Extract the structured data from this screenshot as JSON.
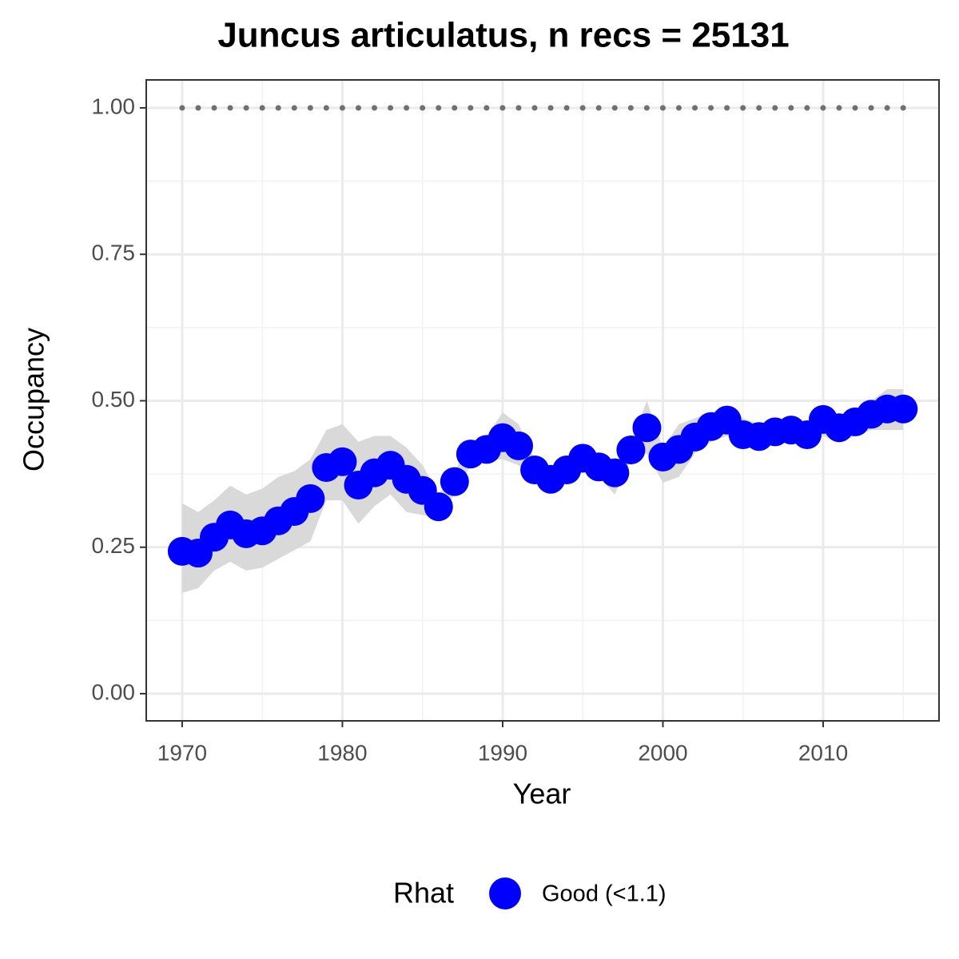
{
  "chart_data": {
    "type": "scatter",
    "title": "Juncus articulatus, n recs = 25131",
    "xlabel": "Year",
    "ylabel": "Occupancy",
    "x": [
      1970,
      1971,
      1972,
      1973,
      1974,
      1975,
      1976,
      1977,
      1978,
      1979,
      1980,
      1981,
      1982,
      1983,
      1984,
      1985,
      1986,
      1987,
      1988,
      1989,
      1990,
      1991,
      1992,
      1993,
      1994,
      1995,
      1996,
      1997,
      1998,
      1999,
      2000,
      2001,
      2002,
      2003,
      2004,
      2005,
      2006,
      2007,
      2008,
      2009,
      2010,
      2011,
      2012,
      2013,
      2014,
      2015
    ],
    "series": [
      {
        "name": "Good (<1.1)",
        "color": "#0000ff",
        "values": [
          0.243,
          0.24,
          0.267,
          0.288,
          0.273,
          0.278,
          0.295,
          0.311,
          0.333,
          0.386,
          0.396,
          0.356,
          0.377,
          0.39,
          0.366,
          0.347,
          0.319,
          0.362,
          0.409,
          0.417,
          0.437,
          0.423,
          0.382,
          0.366,
          0.382,
          0.402,
          0.387,
          0.377,
          0.416,
          0.454,
          0.404,
          0.417,
          0.438,
          0.456,
          0.467,
          0.442,
          0.439,
          0.447,
          0.45,
          0.442,
          0.468,
          0.454,
          0.464,
          0.477,
          0.486,
          0.486
        ],
        "upper": [
          0.325,
          0.31,
          0.33,
          0.355,
          0.34,
          0.35,
          0.37,
          0.38,
          0.4,
          0.45,
          0.46,
          0.43,
          0.44,
          0.44,
          0.42,
          0.39,
          0.34,
          0.38,
          0.43,
          0.44,
          0.48,
          0.46,
          0.4,
          0.38,
          0.4,
          0.42,
          0.4,
          0.39,
          0.43,
          0.5,
          0.42,
          0.46,
          0.47,
          0.48,
          0.49,
          0.47,
          0.46,
          0.46,
          0.47,
          0.46,
          0.49,
          0.47,
          0.48,
          0.5,
          0.52,
          0.52
        ],
        "lower": [
          0.172,
          0.18,
          0.21,
          0.225,
          0.21,
          0.215,
          0.23,
          0.245,
          0.26,
          0.33,
          0.33,
          0.29,
          0.32,
          0.34,
          0.31,
          0.305,
          0.3,
          0.34,
          0.39,
          0.4,
          0.4,
          0.39,
          0.36,
          0.35,
          0.37,
          0.385,
          0.37,
          0.34,
          0.4,
          0.41,
          0.36,
          0.37,
          0.41,
          0.43,
          0.44,
          0.42,
          0.42,
          0.43,
          0.43,
          0.42,
          0.44,
          0.43,
          0.44,
          0.45,
          0.45,
          0.45
        ]
      }
    ],
    "ribbon_color": "#d9d9d9",
    "reference_line": 1,
    "reference_color": "#707070",
    "legend_title": "Rhat",
    "legend": "bottom",
    "xlim": [
      1967.76,
      2017.23
    ],
    "xticks": [
      1970,
      1980,
      1990,
      2000,
      2010
    ],
    "minor_xticks": [
      1975,
      1985,
      1995,
      2005,
      2015
    ],
    "ylim": [
      -0.0464,
      1.0477
    ],
    "yticks": [
      {
        "value": 0,
        "label": "0.00"
      },
      {
        "value": 0.25,
        "label": "0.25"
      },
      {
        "value": 0.5,
        "label": "0.50"
      },
      {
        "value": 0.75,
        "label": "0.75"
      },
      {
        "value": 1,
        "label": "1.00"
      }
    ],
    "minor_yticks": [
      0.125,
      0.375,
      0.625,
      0.875
    ],
    "grid": true
  }
}
